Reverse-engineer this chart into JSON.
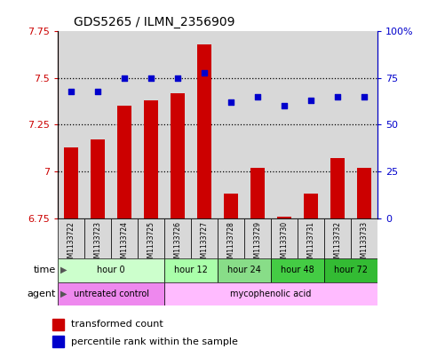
{
  "title": "GDS5265 / ILMN_2356909",
  "samples": [
    "GSM1133722",
    "GSM1133723",
    "GSM1133724",
    "GSM1133725",
    "GSM1133726",
    "GSM1133727",
    "GSM1133728",
    "GSM1133729",
    "GSM1133730",
    "GSM1133731",
    "GSM1133732",
    "GSM1133733"
  ],
  "bar_values": [
    7.13,
    7.17,
    7.35,
    7.38,
    7.42,
    7.68,
    6.88,
    7.02,
    6.76,
    6.88,
    7.07,
    7.02
  ],
  "percentile_values": [
    68,
    68,
    75,
    75,
    75,
    78,
    62,
    65,
    60,
    63,
    65,
    65
  ],
  "bar_color": "#cc0000",
  "percentile_color": "#0000cc",
  "ylim_left": [
    6.75,
    7.75
  ],
  "ylim_right": [
    0,
    100
  ],
  "yticks_left": [
    6.75,
    7.0,
    7.25,
    7.5,
    7.75
  ],
  "yticks_right": [
    0,
    25,
    50,
    75,
    100
  ],
  "ytick_labels_left": [
    "6.75",
    "7",
    "7.25",
    "7.5",
    "7.75"
  ],
  "ytick_labels_right": [
    "0",
    "25",
    "50",
    "75",
    "100%"
  ],
  "dotted_lines": [
    7.0,
    7.25,
    7.5
  ],
  "col_bg_color_odd": "#e8e8e8",
  "col_bg_color_even": "#d0d0d0",
  "time_groups": [
    {
      "label": "hour 0",
      "start": 0,
      "end": 4,
      "color": "#ccffcc"
    },
    {
      "label": "hour 12",
      "start": 4,
      "end": 6,
      "color": "#aaffaa"
    },
    {
      "label": "hour 24",
      "start": 6,
      "end": 8,
      "color": "#88dd88"
    },
    {
      "label": "hour 48",
      "start": 8,
      "end": 10,
      "color": "#44cc44"
    },
    {
      "label": "hour 72",
      "start": 10,
      "end": 12,
      "color": "#33bb33"
    }
  ],
  "agent_groups": [
    {
      "label": "untreated control",
      "start": 0,
      "end": 4,
      "color": "#ee88ee"
    },
    {
      "label": "mycophenolic acid",
      "start": 4,
      "end": 12,
      "color": "#ffbbff"
    }
  ],
  "legend_items": [
    {
      "label": "transformed count",
      "color": "#cc0000"
    },
    {
      "label": "percentile rank within the sample",
      "color": "#0000cc"
    }
  ]
}
